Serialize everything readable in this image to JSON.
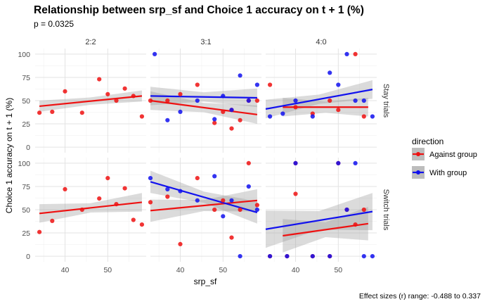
{
  "chart_data": {
    "type": "scatter",
    "title": "Relationship between srp_sf and Choice 1 accuracy on t + 1 (%)",
    "subtitle": "p = 0.0325",
    "xlabel": "srp_sf",
    "ylabel": "Choice 1 accuracy on t + 1 (%)",
    "caption": "Effect sizes (r) range: -0.488 to 0.337",
    "xlim": [
      33,
      59
    ],
    "ylim": [
      -6,
      106
    ],
    "x_ticks": [
      40,
      50
    ],
    "y_ticks": [
      0,
      25,
      50,
      75,
      100
    ],
    "grid": true,
    "legend": {
      "title": "direction",
      "position": "right",
      "entries": [
        {
          "name": "Against group",
          "color": "#ee1111"
        },
        {
          "name": "With group",
          "color": "#1111ee"
        }
      ]
    },
    "columns": [
      "2:2",
      "3:1",
      "4:0"
    ],
    "rows": [
      "Stay trials",
      "Switch trials"
    ],
    "panels": [
      {
        "col": "2:2",
        "row": "Stay trials",
        "series": [
          {
            "name": "Against group",
            "color": "#ee1111",
            "points": [
              [
                34,
                37
              ],
              [
                37,
                38
              ],
              [
                40,
                60
              ],
              [
                44,
                37
              ],
              [
                48,
                73
              ],
              [
                50,
                57
              ],
              [
                52,
                50
              ],
              [
                54,
                63
              ],
              [
                56,
                55
              ],
              [
                58,
                33
              ]
            ],
            "fit": {
              "x0": 34,
              "y0": 44,
              "x1": 58,
              "y1": 55
            },
            "band_width": [
              6,
              4,
              6
            ]
          }
        ]
      },
      {
        "col": "3:1",
        "row": "Stay trials",
        "series": [
          {
            "name": "Against group",
            "color": "#ee1111",
            "points": [
              [
                33,
                50
              ],
              [
                37,
                50
              ],
              [
                40,
                57
              ],
              [
                44,
                67
              ],
              [
                48,
                26
              ],
              [
                50,
                38
              ],
              [
                52,
                20
              ],
              [
                52,
                40
              ],
              [
                54,
                29
              ],
              [
                56,
                50
              ],
              [
                58,
                50
              ]
            ],
            "fit": {
              "x0": 33,
              "y0": 50,
              "x1": 58,
              "y1": 35
            },
            "band_width": [
              10,
              5,
              10
            ]
          },
          {
            "name": "With group",
            "color": "#1111ee",
            "points": [
              [
                34,
                100
              ],
              [
                37,
                29
              ],
              [
                40,
                38
              ],
              [
                44,
                50
              ],
              [
                48,
                30
              ],
              [
                50,
                55
              ],
              [
                52,
                40
              ],
              [
                54,
                77
              ],
              [
                56,
                50
              ],
              [
                58,
                67
              ]
            ],
            "fit": {
              "x0": 33,
              "y0": 55,
              "x1": 58,
              "y1": 53
            },
            "band_width": [
              10,
              5,
              10
            ]
          }
        ]
      },
      {
        "col": "4:0",
        "row": "Stay trials",
        "series": [
          {
            "name": "Against group",
            "color": "#ee1111",
            "points": [
              [
                34,
                67
              ],
              [
                40,
                43
              ],
              [
                44,
                36
              ],
              [
                48,
                50
              ],
              [
                50,
                40
              ],
              [
                54,
                100
              ],
              [
                56,
                33
              ]
            ],
            "fit": {
              "x0": 37,
              "y0": 43,
              "x1": 57,
              "y1": 43
            },
            "band_width": [
              10,
              6,
              10
            ]
          },
          {
            "name": "With group",
            "color": "#1111ee",
            "points": [
              [
                34,
                33
              ],
              [
                37,
                36
              ],
              [
                40,
                50
              ],
              [
                44,
                33
              ],
              [
                48,
                80
              ],
              [
                50,
                67
              ],
              [
                52,
                100
              ],
              [
                54,
                50
              ],
              [
                56,
                50
              ],
              [
                58,
                33
              ]
            ],
            "fit": {
              "x0": 33,
              "y0": 41,
              "x1": 58,
              "y1": 62
            },
            "band_width": [
              10,
              5,
              10
            ]
          }
        ]
      },
      {
        "col": "2:2",
        "row": "Switch trials",
        "series": [
          {
            "name": "Against group",
            "color": "#ee1111",
            "points": [
              [
                34,
                26
              ],
              [
                37,
                38
              ],
              [
                40,
                72
              ],
              [
                44,
                50
              ],
              [
                48,
                62
              ],
              [
                50,
                84
              ],
              [
                52,
                56
              ],
              [
                54,
                73
              ],
              [
                56,
                39
              ],
              [
                58,
                34
              ]
            ],
            "fit": {
              "x0": 34,
              "y0": 46,
              "x1": 58,
              "y1": 58
            },
            "band_width": [
              10,
              5,
              10
            ]
          }
        ]
      },
      {
        "col": "3:1",
        "row": "Switch trials",
        "series": [
          {
            "name": "Against group",
            "color": "#ee1111",
            "points": [
              [
                33,
                58
              ],
              [
                37,
                64
              ],
              [
                40,
                13
              ],
              [
                44,
                84
              ],
              [
                48,
                50
              ],
              [
                50,
                60
              ],
              [
                52,
                20
              ],
              [
                54,
                50
              ],
              [
                56,
                100
              ],
              [
                58,
                55
              ]
            ],
            "fit": {
              "x0": 33,
              "y0": 49,
              "x1": 58,
              "y1": 60
            },
            "band_width": [
              12,
              6,
              12
            ]
          },
          {
            "name": "With group",
            "color": "#1111ee",
            "points": [
              [
                33,
                84
              ],
              [
                37,
                72
              ],
              [
                40,
                70
              ],
              [
                44,
                60
              ],
              [
                48,
                86
              ],
              [
                50,
                43
              ],
              [
                52,
                60
              ],
              [
                54,
                0
              ],
              [
                56,
                75
              ],
              [
                58,
                50
              ]
            ],
            "fit": {
              "x0": 33,
              "y0": 80,
              "x1": 58,
              "y1": 47
            },
            "band_width": [
              12,
              6,
              12
            ]
          }
        ]
      },
      {
        "col": "4:0",
        "row": "Switch trials",
        "series": [
          {
            "name": "Against group",
            "color": "#ee1111",
            "points": [
              [
                34,
                0
              ],
              [
                38,
                0
              ],
              [
                40,
                67
              ],
              [
                40,
                100
              ],
              [
                44,
                0
              ],
              [
                48,
                0
              ],
              [
                50,
                100
              ],
              [
                52,
                50
              ],
              [
                54,
                34
              ],
              [
                56,
                50
              ]
            ],
            "fit": {
              "x0": 37,
              "y0": 22,
              "x1": 57,
              "y1": 35
            },
            "band_width": [
              18,
              8,
              18
            ]
          },
          {
            "name": "With group",
            "color": "#1111ee",
            "points": [
              [
                34,
                0
              ],
              [
                38,
                0
              ],
              [
                40,
                100
              ],
              [
                44,
                0
              ],
              [
                48,
                0
              ],
              [
                50,
                100
              ],
              [
                52,
                50
              ],
              [
                54,
                100
              ],
              [
                56,
                0
              ],
              [
                58,
                0
              ]
            ],
            "fit": {
              "x0": 33,
              "y0": 29,
              "x1": 58,
              "y1": 48
            },
            "band_width": [
              20,
              10,
              20
            ]
          }
        ]
      }
    ]
  }
}
